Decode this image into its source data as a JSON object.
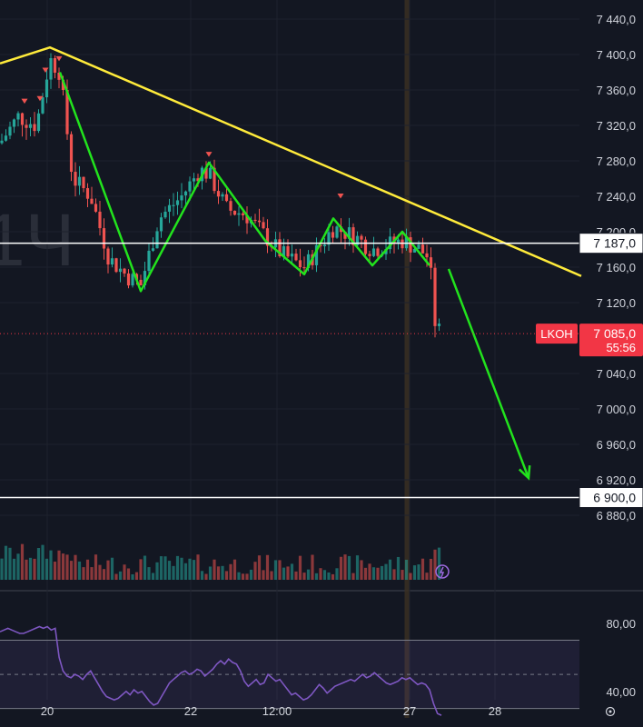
{
  "chart_data": [
    {
      "type": "candlestick",
      "symbol": "LKOH",
      "timeframe_watermark": "1Ч",
      "y_ticks": [
        "7 440,0",
        "7 400,0",
        "7 360,0",
        "7 320,0",
        "7 280,0",
        "7 240,0",
        "7 200,0",
        "7 160,0",
        "7 120,0",
        "7 040,0",
        "7 000,0",
        "6 960,0",
        "6 920,0",
        "6 880,0"
      ],
      "x_ticks": [
        "20",
        "22",
        "12:00",
        "27",
        "28"
      ],
      "ylim": [
        6870,
        7460
      ],
      "price": {
        "symbol_label": "LKOH",
        "value_label": "7 085,0",
        "countdown": "55:56",
        "value": 7085
      },
      "horizontal_levels": [
        {
          "label": "7 187,0",
          "value": 7187,
          "color": "#ffffff"
        },
        {
          "label": "6 900,0",
          "value": 6900,
          "color": "#ffffff"
        }
      ],
      "trendline": {
        "color": "#ffeb3b",
        "points": [
          [
            0,
            7390
          ],
          [
            55,
            7408
          ],
          [
            640,
            7150
          ]
        ]
      },
      "zigzag": {
        "color": "#22e31d",
        "points": [
          [
            66,
            7380
          ],
          [
            155,
            7133
          ],
          [
            230,
            7278
          ],
          [
            292,
            7190
          ],
          [
            335,
            7152
          ],
          [
            367,
            7215
          ],
          [
            410,
            7162
          ],
          [
            443,
            7200
          ],
          [
            473,
            7162
          ]
        ]
      },
      "forecast_arrow": {
        "color": "#22e31d",
        "from": [
          494,
          7158
        ],
        "to": [
          582,
          6922
        ]
      },
      "colors": {
        "up": "#26a69a",
        "down": "#ef5350",
        "background": "#131722",
        "price_label": "#f23645"
      }
    },
    {
      "type": "oscillator",
      "y_ticks": [
        "80,00",
        "40,00"
      ],
      "ylim": [
        25,
        90
      ],
      "band": [
        30,
        70
      ],
      "midline": 50,
      "color": "#7e57c2",
      "values": [
        75,
        76,
        77,
        76,
        75,
        74,
        74,
        75,
        76,
        77,
        78,
        77,
        78,
        76,
        77,
        60,
        52,
        49,
        48,
        50,
        49,
        47,
        50,
        52,
        48,
        44,
        40,
        37,
        36,
        35,
        36,
        38,
        40,
        38,
        41,
        39,
        40,
        37,
        34,
        32,
        33,
        37,
        41,
        45,
        47,
        49,
        51,
        52,
        50,
        51,
        53,
        52,
        49,
        51,
        53,
        56,
        58,
        56,
        59,
        57,
        56,
        52,
        46,
        43,
        45,
        47,
        44,
        45,
        50,
        48,
        46,
        47,
        44,
        41,
        38,
        39,
        37,
        35,
        36,
        38,
        41,
        44,
        42,
        39,
        41,
        43,
        44,
        45,
        46,
        47,
        46,
        48,
        50,
        48,
        49,
        51,
        49,
        47,
        45,
        44,
        45,
        46,
        48,
        47,
        48,
        46,
        44,
        45,
        44,
        41,
        33,
        27,
        26
      ]
    }
  ]
}
